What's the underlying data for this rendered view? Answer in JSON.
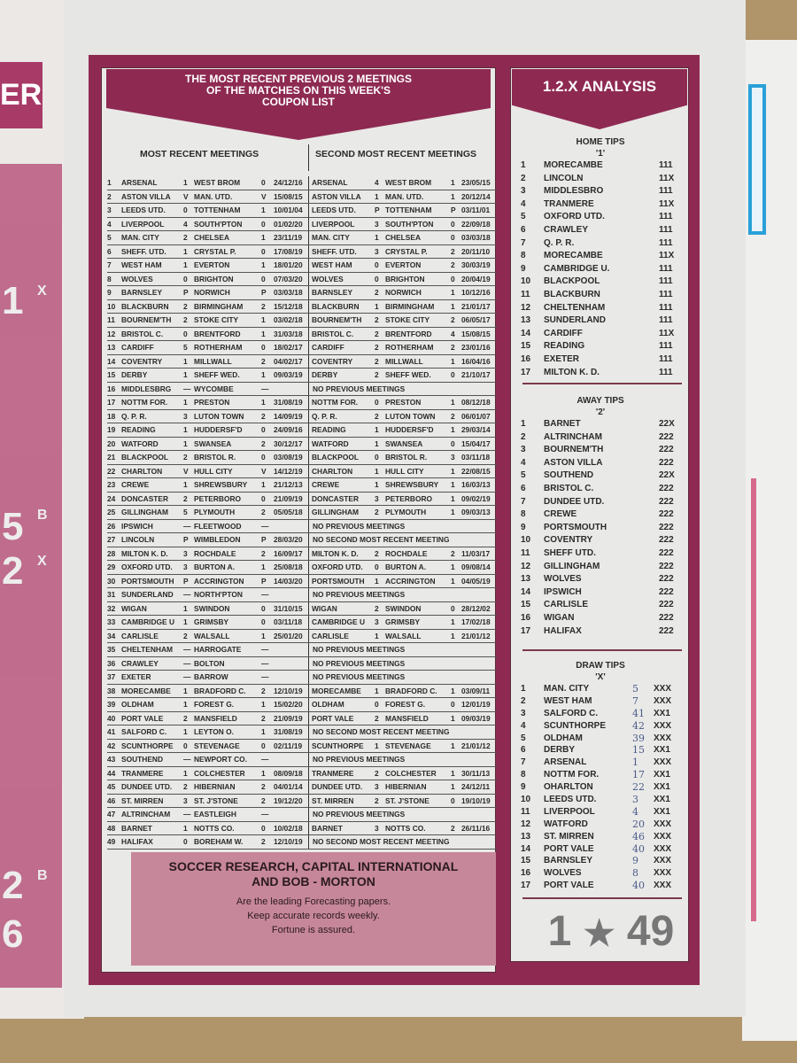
{
  "left_page": {
    "fragment": "ER",
    "numbers": [
      "1",
      "5",
      "2",
      "2",
      "6"
    ],
    "sups": [
      "X",
      "B",
      "X",
      "B"
    ]
  },
  "main": {
    "title_lines": [
      "THE MOST RECENT PREVIOUS 2 MEETINGS",
      "OF THE MATCHES ON THIS WEEK'S",
      "COUPON LIST"
    ],
    "col_head_1": "MOST RECENT MEETINGS",
    "col_head_2": "SECOND MOST RECENT MEETINGS",
    "rows": [
      [
        "1",
        "ARSENAL",
        "1",
        "WEST BROM",
        "0",
        "24/12/16",
        "ARSENAL",
        "4",
        "WEST BROM",
        "1",
        "23/05/15"
      ],
      [
        "2",
        "ASTON VILLA",
        "V",
        "MAN. UTD.",
        "V",
        "15/08/15",
        "ASTON VILLA",
        "1",
        "MAN. UTD.",
        "1",
        "20/12/14"
      ],
      [
        "3",
        "LEEDS UTD.",
        "0",
        "TOTTENHAM",
        "1",
        "10/01/04",
        "LEEDS UTD.",
        "P",
        "TOTTENHAM",
        "P",
        "03/11/01"
      ],
      [
        "4",
        "LIVERPOOL",
        "4",
        "SOUTH'PTON",
        "0",
        "01/02/20",
        "LIVERPOOL",
        "3",
        "SOUTH'PTON",
        "0",
        "22/09/18"
      ],
      [
        "5",
        "MAN. CITY",
        "2",
        "CHELSEA",
        "1",
        "23/11/19",
        "MAN. CITY",
        "1",
        "CHELSEA",
        "0",
        "03/03/18"
      ],
      [
        "6",
        "SHEFF. UTD.",
        "1",
        "CRYSTAL P.",
        "0",
        "17/08/19",
        "SHEFF. UTD.",
        "3",
        "CRYSTAL P.",
        "2",
        "20/11/10"
      ],
      [
        "7",
        "WEST HAM",
        "1",
        "EVERTON",
        "1",
        "18/01/20",
        "WEST HAM",
        "0",
        "EVERTON",
        "2",
        "30/03/19"
      ],
      [
        "8",
        "WOLVES",
        "0",
        "BRIGHTON",
        "0",
        "07/03/20",
        "WOLVES",
        "0",
        "BRIGHTON",
        "0",
        "20/04/19"
      ],
      [
        "9",
        "BARNSLEY",
        "P",
        "NORWICH",
        "P",
        "03/03/18",
        "BARNSLEY",
        "2",
        "NORWICH",
        "1",
        "10/12/16"
      ],
      [
        "10",
        "BLACKBURN",
        "2",
        "BIRMINGHAM",
        "2",
        "15/12/18",
        "BLACKBURN",
        "1",
        "BIRMINGHAM",
        "1",
        "21/01/17"
      ],
      [
        "11",
        "BOURNEM'TH",
        "2",
        "STOKE CITY",
        "1",
        "03/02/18",
        "BOURNEM'TH",
        "2",
        "STOKE CITY",
        "2",
        "06/05/17"
      ],
      [
        "12",
        "BRISTOL C.",
        "0",
        "BRENTFORD",
        "1",
        "31/03/18",
        "BRISTOL C.",
        "2",
        "BRENTFORD",
        "4",
        "15/08/15"
      ],
      [
        "13",
        "CARDIFF",
        "5",
        "ROTHERHAM",
        "0",
        "18/02/17",
        "CARDIFF",
        "2",
        "ROTHERHAM",
        "2",
        "23/01/16"
      ],
      [
        "14",
        "COVENTRY",
        "1",
        "MILLWALL",
        "2",
        "04/02/17",
        "COVENTRY",
        "2",
        "MILLWALL",
        "1",
        "16/04/16"
      ],
      [
        "15",
        "DERBY",
        "1",
        "SHEFF WED.",
        "1",
        "09/03/19",
        "DERBY",
        "2",
        "SHEFF WED.",
        "0",
        "21/10/17"
      ],
      [
        "16",
        "MIDDLESBRG",
        "—",
        "WYCOMBE",
        "—",
        "",
        "NO PREVIOUS MEETINGS"
      ],
      [
        "17",
        "NOTTM FOR.",
        "1",
        "PRESTON",
        "1",
        "31/08/19",
        "NOTTM FOR.",
        "0",
        "PRESTON",
        "1",
        "08/12/18"
      ],
      [
        "18",
        "Q. P. R.",
        "3",
        "LUTON TOWN",
        "2",
        "14/09/19",
        "Q. P. R.",
        "2",
        "LUTON TOWN",
        "2",
        "06/01/07"
      ],
      [
        "19",
        "READING",
        "1",
        "HUDDERSF'D",
        "0",
        "24/09/16",
        "READING",
        "1",
        "HUDDERSF'D",
        "1",
        "29/03/14"
      ],
      [
        "20",
        "WATFORD",
        "1",
        "SWANSEA",
        "2",
        "30/12/17",
        "WATFORD",
        "1",
        "SWANSEA",
        "0",
        "15/04/17"
      ],
      [
        "21",
        "BLACKPOOL",
        "2",
        "BRISTOL R.",
        "0",
        "03/08/19",
        "BLACKPOOL",
        "0",
        "BRISTOL R.",
        "3",
        "03/11/18"
      ],
      [
        "22",
        "CHARLTON",
        "V",
        "HULL CITY",
        "V",
        "14/12/19",
        "CHARLTON",
        "1",
        "HULL CITY",
        "1",
        "22/08/15"
      ],
      [
        "23",
        "CREWE",
        "1",
        "SHREWSBURY",
        "1",
        "21/12/13",
        "CREWE",
        "1",
        "SHREWSBURY",
        "1",
        "16/03/13"
      ],
      [
        "24",
        "DONCASTER",
        "2",
        "PETERBORO",
        "0",
        "21/09/19",
        "DONCASTER",
        "3",
        "PETERBORO",
        "1",
        "09/02/19"
      ],
      [
        "25",
        "GILLINGHAM",
        "5",
        "PLYMOUTH",
        "2",
        "05/05/18",
        "GILLINGHAM",
        "2",
        "PLYMOUTH",
        "1",
        "09/03/13"
      ],
      [
        "26",
        "IPSWICH",
        "—",
        "FLEETWOOD",
        "—",
        "",
        "NO PREVIOUS MEETINGS"
      ],
      [
        "27",
        "LINCOLN",
        "P",
        "WIMBLEDON",
        "P",
        "28/03/20",
        "NO SECOND MOST RECENT MEETING"
      ],
      [
        "28",
        "MILTON K. D.",
        "3",
        "ROCHDALE",
        "2",
        "16/09/17",
        "MILTON K. D.",
        "2",
        "ROCHDALE",
        "2",
        "11/03/17"
      ],
      [
        "29",
        "OXFORD UTD.",
        "3",
        "BURTON A.",
        "1",
        "25/08/18",
        "OXFORD UTD.",
        "0",
        "BURTON A.",
        "1",
        "09/08/14"
      ],
      [
        "30",
        "PORTSMOUTH",
        "P",
        "ACCRINGTON",
        "P",
        "14/03/20",
        "PORTSMOUTH",
        "1",
        "ACCRINGTON",
        "1",
        "04/05/19"
      ],
      [
        "31",
        "SUNDERLAND",
        "—",
        "NORTH'PTON",
        "—",
        "",
        "NO PREVIOUS MEETINGS"
      ],
      [
        "32",
        "WIGAN",
        "1",
        "SWINDON",
        "0",
        "31/10/15",
        "WIGAN",
        "2",
        "SWINDON",
        "0",
        "28/12/02"
      ],
      [
        "33",
        "CAMBRIDGE U",
        "1",
        "GRIMSBY",
        "0",
        "03/11/18",
        "CAMBRIDGE U",
        "3",
        "GRIMSBY",
        "1",
        "17/02/18"
      ],
      [
        "34",
        "CARLISLE",
        "2",
        "WALSALL",
        "1",
        "25/01/20",
        "CARLISLE",
        "1",
        "WALSALL",
        "1",
        "21/01/12"
      ],
      [
        "35",
        "CHELTENHAM",
        "—",
        "HARROGATE",
        "—",
        "",
        "NO PREVIOUS MEETINGS"
      ],
      [
        "36",
        "CRAWLEY",
        "—",
        "BOLTON",
        "—",
        "",
        "NO PREVIOUS MEETINGS"
      ],
      [
        "37",
        "EXETER",
        "—",
        "BARROW",
        "—",
        "",
        "NO PREVIOUS MEETINGS"
      ],
      [
        "38",
        "MORECAMBE",
        "1",
        "BRADFORD C.",
        "2",
        "12/10/19",
        "MORECAMBE",
        "1",
        "BRADFORD C.",
        "1",
        "03/09/11"
      ],
      [
        "39",
        "OLDHAM",
        "1",
        "FOREST G.",
        "1",
        "15/02/20",
        "OLDHAM",
        "0",
        "FOREST G.",
        "0",
        "12/01/19"
      ],
      [
        "40",
        "PORT VALE",
        "2",
        "MANSFIELD",
        "2",
        "21/09/19",
        "PORT VALE",
        "2",
        "MANSFIELD",
        "1",
        "09/03/19"
      ],
      [
        "41",
        "SALFORD C.",
        "1",
        "LEYTON O.",
        "1",
        "31/08/19",
        "NO SECOND MOST RECENT MEETING"
      ],
      [
        "42",
        "SCUNTHORPE",
        "0",
        "STEVENAGE",
        "0",
        "02/11/19",
        "SCUNTHORPE",
        "1",
        "STEVENAGE",
        "1",
        "21/01/12"
      ],
      [
        "43",
        "SOUTHEND",
        "—",
        "NEWPORT CO.",
        "—",
        "",
        "NO PREVIOUS MEETINGS"
      ],
      [
        "44",
        "TRANMERE",
        "1",
        "COLCHESTER",
        "1",
        "08/09/18",
        "TRANMERE",
        "2",
        "COLCHESTER",
        "1",
        "30/11/13"
      ],
      [
        "45",
        "DUNDEE UTD.",
        "2",
        "HIBERNIAN",
        "2",
        "04/01/14",
        "DUNDEE UTD.",
        "3",
        "HIBERNIAN",
        "1",
        "24/12/11"
      ],
      [
        "46",
        "ST. MIRREN",
        "3",
        "ST. J'STONE",
        "2",
        "19/12/20",
        "ST. MIRREN",
        "2",
        "ST. J'STONE",
        "0",
        "19/10/19"
      ],
      [
        "47",
        "ALTRINCHAM",
        "—",
        "EASTLEIGH",
        "—",
        "",
        "NO PREVIOUS MEETINGS"
      ],
      [
        "48",
        "BARNET",
        "1",
        "NOTTS CO.",
        "0",
        "10/02/18",
        "BARNET",
        "3",
        "NOTTS CO.",
        "2",
        "26/11/16"
      ],
      [
        "49",
        "HALIFAX",
        "0",
        "BOREHAM W.",
        "2",
        "12/10/19",
        "NO SECOND MOST RECENT MEETING"
      ]
    ],
    "ad": {
      "line1": "SOCCER RESEARCH, CAPITAL INTERNATIONAL",
      "line2": "AND  BOB - MORTON",
      "line3": "Are the leading Forecasting papers.",
      "line4": "Keep accurate records weekly.",
      "line5": "Fortune is assured."
    }
  },
  "analysis": {
    "title": "1.2.X ANALYSIS",
    "home": {
      "title": "HOME TIPS",
      "symbol": "'1'",
      "items": [
        [
          "1",
          "MORECAMBE",
          "111"
        ],
        [
          "2",
          "LINCOLN",
          "11X"
        ],
        [
          "3",
          "MIDDLESBRO",
          "111"
        ],
        [
          "4",
          "TRANMERE",
          "11X"
        ],
        [
          "5",
          "OXFORD UTD.",
          "111"
        ],
        [
          "6",
          "CRAWLEY",
          "111"
        ],
        [
          "7",
          "Q. P. R.",
          "111"
        ],
        [
          "8",
          "MORECAMBE",
          "11X"
        ],
        [
          "9",
          "CAMBRIDGE U.",
          "111"
        ],
        [
          "10",
          "BLACKPOOL",
          "111"
        ],
        [
          "11",
          "BLACKBURN",
          "111"
        ],
        [
          "12",
          "CHELTENHAM",
          "111"
        ],
        [
          "13",
          "SUNDERLAND",
          "111"
        ],
        [
          "14",
          "CARDIFF",
          "11X"
        ],
        [
          "15",
          "READING",
          "111"
        ],
        [
          "16",
          "EXETER",
          "111"
        ],
        [
          "17",
          "MILTON K. D.",
          "111"
        ]
      ]
    },
    "away": {
      "title": "AWAY TIPS",
      "symbol": "'2'",
      "items": [
        [
          "1",
          "BARNET",
          "22X"
        ],
        [
          "2",
          "ALTRINCHAM",
          "222"
        ],
        [
          "3",
          "BOURNEM'TH",
          "222"
        ],
        [
          "4",
          "ASTON VILLA",
          "222"
        ],
        [
          "5",
          "SOUTHEND",
          "22X"
        ],
        [
          "6",
          "BRISTOL C.",
          "222"
        ],
        [
          "7",
          "DUNDEE UTD.",
          "222"
        ],
        [
          "8",
          "CREWE",
          "222"
        ],
        [
          "9",
          "PORTSMOUTH",
          "222"
        ],
        [
          "10",
          "COVENTRY",
          "222"
        ],
        [
          "11",
          "SHEFF UTD.",
          "222"
        ],
        [
          "12",
          "GILLINGHAM",
          "222"
        ],
        [
          "13",
          "WOLVES",
          "222"
        ],
        [
          "14",
          "IPSWICH",
          "222"
        ],
        [
          "15",
          "CARLISLE",
          "222"
        ],
        [
          "16",
          "WIGAN",
          "222"
        ],
        [
          "17",
          "HALIFAX",
          "222"
        ]
      ]
    },
    "draw": {
      "title": "DRAW TIPS",
      "symbol": "'X'",
      "items": [
        [
          "1",
          "MAN. CITY",
          "XXX",
          "5"
        ],
        [
          "2",
          "WEST HAM",
          "XXX",
          "7"
        ],
        [
          "3",
          "SALFORD C.",
          "XX1",
          "41"
        ],
        [
          "4",
          "SCUNTHORPE",
          "XXX",
          "42"
        ],
        [
          "5",
          "OLDHAM",
          "XXX",
          "39"
        ],
        [
          "6",
          "DERBY",
          "XX1",
          "15"
        ],
        [
          "7",
          "ARSENAL",
          "XXX",
          "1"
        ],
        [
          "8",
          "NOTTM FOR.",
          "XX1",
          "17"
        ],
        [
          "9",
          "OHARLTON",
          "XX1",
          "22"
        ],
        [
          "10",
          "LEEDS UTD.",
          "XX1",
          "3"
        ],
        [
          "11",
          "LIVERPOOL",
          "XX1",
          "4"
        ],
        [
          "12",
          "WATFORD",
          "XXX",
          "20"
        ],
        [
          "13",
          "ST. MIRREN",
          "XXX",
          "46"
        ],
        [
          "14",
          "PORT VALE",
          "XXX",
          "40"
        ],
        [
          "15",
          "BARNSLEY",
          "XXX",
          "9"
        ],
        [
          "16",
          "WOLVES",
          "XXX",
          "8"
        ],
        [
          "17",
          "PORT VALE",
          "XXX",
          "40"
        ]
      ]
    },
    "logo": {
      "left": "1",
      "right": "49",
      "icon": "star-icon"
    }
  },
  "colors": {
    "frame": "#8e2a52",
    "ad_bg": "#c7879a",
    "paper": "#e6e6e4"
  }
}
